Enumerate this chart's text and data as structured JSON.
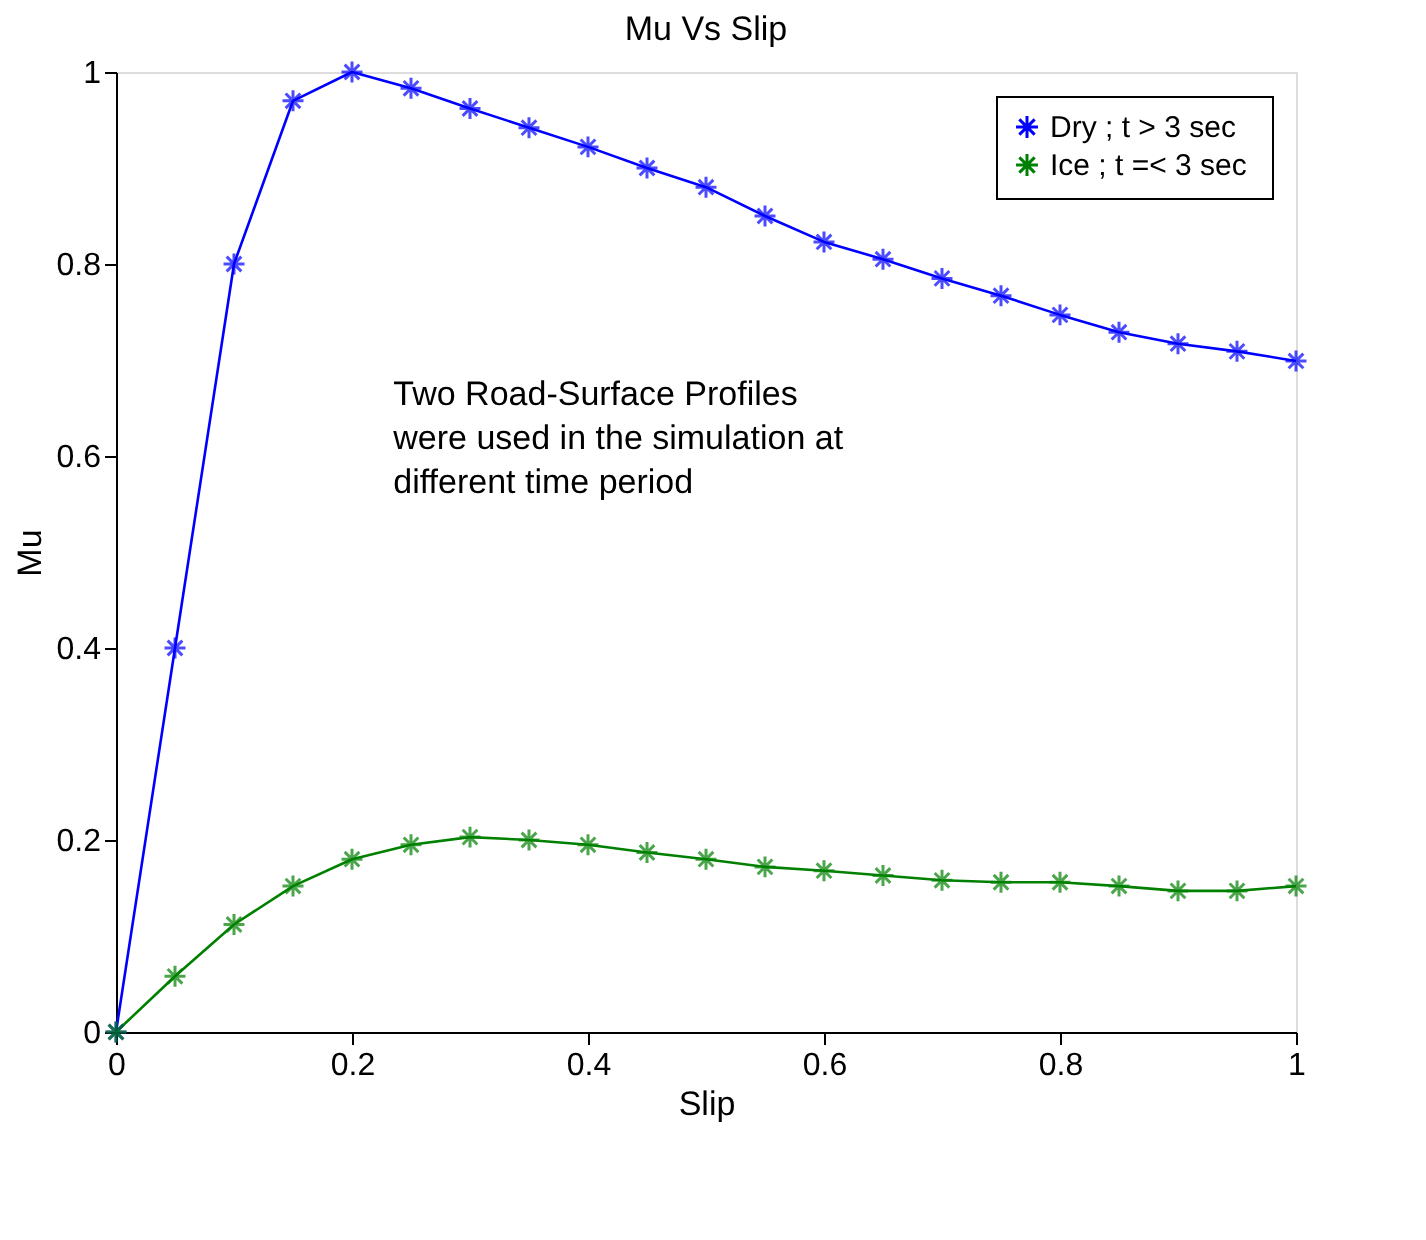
{
  "chart_data": {
    "type": "line",
    "title": "Mu Vs Slip",
    "xlabel": "Slip",
    "ylabel": "Mu",
    "x": [
      0,
      0.05,
      0.1,
      0.15,
      0.2,
      0.25,
      0.3,
      0.35,
      0.4,
      0.45,
      0.5,
      0.55,
      0.6,
      0.65,
      0.7,
      0.75,
      0.8,
      0.85,
      0.9,
      0.95,
      1.0
    ],
    "series": [
      {
        "name": "Dry ; t > 3 sec",
        "color": "#0000ff",
        "values": [
          0,
          0.4,
          0.8,
          0.97,
          1.0,
          0.983,
          0.962,
          0.942,
          0.922,
          0.9,
          0.88,
          0.85,
          0.823,
          0.805,
          0.785,
          0.767,
          0.747,
          0.729,
          0.717,
          0.709,
          0.699
        ]
      },
      {
        "name": "Ice  ; t =< 3 sec",
        "color": "#008000",
        "values": [
          0,
          0.058,
          0.112,
          0.152,
          0.18,
          0.195,
          0.203,
          0.2,
          0.195,
          0.187,
          0.18,
          0.172,
          0.168,
          0.163,
          0.158,
          0.156,
          0.156,
          0.152,
          0.147,
          0.147,
          0.152
        ]
      }
    ],
    "xlim": [
      0,
      1
    ],
    "xticks": [
      0,
      0.2,
      0.4,
      0.6,
      0.8,
      1
    ],
    "ylim": [
      0,
      1
    ],
    "yticks": [
      0,
      0.2,
      0.4,
      0.6,
      0.8,
      1
    ],
    "grid": false,
    "legend": "top right",
    "marker": "cross",
    "line_style": "solid",
    "annotations": [
      "Two Road-Surface Profiles\nwere used in the simulation at\ndifferent time period"
    ]
  }
}
